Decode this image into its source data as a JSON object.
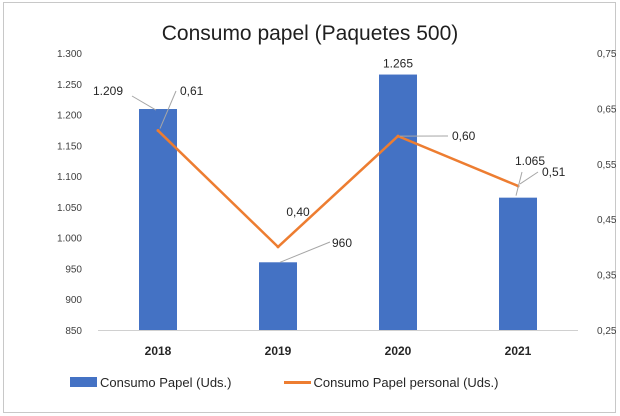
{
  "chart_data": {
    "type": "bar",
    "title": "Consumo papel (Paquetes 500)",
    "categories": [
      "2018",
      "2019",
      "2020",
      "2021"
    ],
    "series": [
      {
        "name": "Consumo Papel (Uds.)",
        "kind": "bar",
        "axis": "left",
        "values": [
          1209,
          960,
          1265,
          1065
        ],
        "labels": [
          "1.209",
          "960",
          "1.265",
          "1.065"
        ],
        "color": "#4472c4"
      },
      {
        "name": "Consumo Papel personal (Uds.)",
        "kind": "line",
        "axis": "right",
        "values": [
          0.61,
          0.4,
          0.6,
          0.51
        ],
        "labels": [
          "0,61",
          "0,40",
          "0,60",
          "0,51"
        ],
        "color": "#ed7d31"
      }
    ],
    "y_left": {
      "range": [
        850,
        1300
      ],
      "ticks": [
        850,
        900,
        950,
        1000,
        1050,
        1100,
        1150,
        1200,
        1250,
        1300
      ],
      "tick_labels": [
        "850",
        "900",
        "950",
        "1.000",
        "1.050",
        "1.100",
        "1.150",
        "1.200",
        "1.250",
        "1.300"
      ]
    },
    "y_right": {
      "range": [
        0.25,
        0.75
      ],
      "ticks": [
        0.25,
        0.35,
        0.45,
        0.55,
        0.65,
        0.75
      ],
      "tick_labels": [
        "0,25",
        "0,35",
        "0,45",
        "0,55",
        "0,65",
        "0,75"
      ]
    },
    "grid": false,
    "legend": "bottom"
  }
}
